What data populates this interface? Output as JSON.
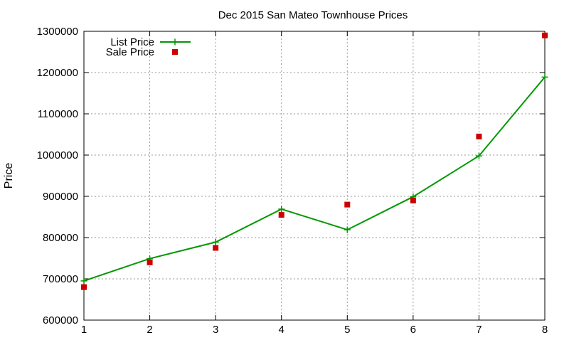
{
  "chart_data": {
    "type": "line",
    "title": "Dec 2015 San Mateo Townhouse Prices",
    "xlabel": "",
    "ylabel": "Price",
    "xlim": [
      1,
      8
    ],
    "ylim": [
      600000,
      1300000
    ],
    "x_ticks": [
      1,
      2,
      3,
      4,
      5,
      6,
      7,
      8
    ],
    "y_ticks": [
      600000,
      700000,
      800000,
      900000,
      1000000,
      1100000,
      1200000,
      1300000
    ],
    "grid": true,
    "legend_position": "top-left",
    "series": [
      {
        "name": "List Price",
        "style": "line-points",
        "marker": "plus",
        "color": "#009900",
        "x": [
          1,
          2,
          3,
          4,
          5,
          6,
          7,
          8
        ],
        "y": [
          695000,
          749000,
          789000,
          869000,
          819000,
          899000,
          998000,
          1189000
        ]
      },
      {
        "name": "Sale Price",
        "style": "points",
        "marker": "square",
        "color": "#cc0000",
        "x": [
          1,
          2,
          3,
          4,
          5,
          6,
          7,
          8
        ],
        "y": [
          680000,
          740000,
          775000,
          855000,
          880000,
          890000,
          1045000,
          1290000
        ]
      }
    ]
  }
}
